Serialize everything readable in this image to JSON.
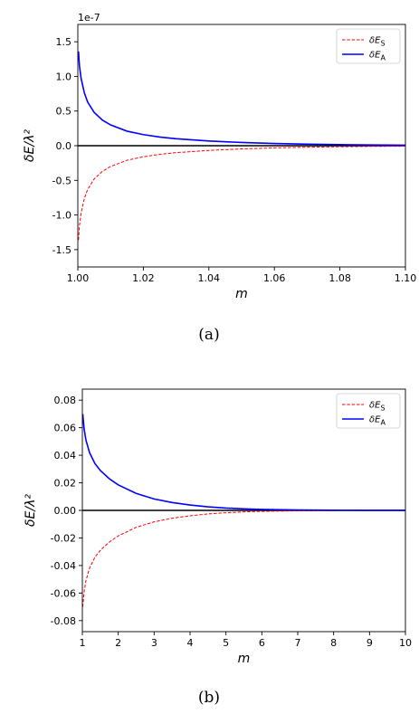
{
  "chart_data": [
    {
      "type": "line",
      "caption": "(a)",
      "xlabel": "m",
      "ylabel": "δE/λ²",
      "offset_text": "1e-7",
      "xlim": [
        1.0,
        1.1
      ],
      "ylim": [
        -1.75,
        1.75
      ],
      "xticks": [
        "1.00",
        "1.02",
        "1.04",
        "1.06",
        "1.08",
        "1.10"
      ],
      "yticks": [
        "1.5",
        "1.0",
        "0.5",
        "0.0",
        "-0.5",
        "-1.0",
        "-1.5"
      ],
      "xtick_values": [
        1.0,
        1.02,
        1.04,
        1.06,
        1.08,
        1.1
      ],
      "ytick_values": [
        1.5,
        1.0,
        0.5,
        0.0,
        -0.5,
        -1.0,
        -1.5
      ],
      "legend_position": "top-right",
      "series": [
        {
          "name": "δE_S",
          "color": "#ff0000",
          "style": "dashed",
          "x": [
            1.0002,
            1.0005,
            1.001,
            1.002,
            1.003,
            1.005,
            1.0075,
            1.01,
            1.015,
            1.02,
            1.025,
            1.03,
            1.04,
            1.05,
            1.06,
            1.07,
            1.08,
            1.09,
            1.1
          ],
          "y": [
            -1.36,
            -1.15,
            -0.97,
            -0.76,
            -0.63,
            -0.48,
            -0.37,
            -0.3,
            -0.21,
            -0.16,
            -0.125,
            -0.1,
            -0.068,
            -0.046,
            -0.032,
            -0.022,
            -0.015,
            -0.01,
            -0.007
          ]
        },
        {
          "name": "δE_A",
          "color": "#0000ff",
          "style": "solid",
          "x": [
            1.0002,
            1.0005,
            1.001,
            1.002,
            1.003,
            1.005,
            1.0075,
            1.01,
            1.015,
            1.02,
            1.025,
            1.03,
            1.04,
            1.05,
            1.06,
            1.07,
            1.08,
            1.09,
            1.1
          ],
          "y": [
            1.36,
            1.15,
            0.97,
            0.76,
            0.63,
            0.48,
            0.37,
            0.3,
            0.21,
            0.16,
            0.125,
            0.1,
            0.068,
            0.046,
            0.032,
            0.022,
            0.015,
            0.01,
            0.007
          ]
        }
      ]
    },
    {
      "type": "line",
      "caption": "(b)",
      "xlabel": "m",
      "ylabel": "δE/λ²",
      "offset_text": "",
      "xlim": [
        1,
        10
      ],
      "ylim": [
        -0.088,
        0.088
      ],
      "xticks": [
        "1",
        "2",
        "3",
        "4",
        "5",
        "6",
        "7",
        "8",
        "9",
        "10"
      ],
      "yticks": [
        "0.08",
        "0.06",
        "0.04",
        "0.02",
        "0.00",
        "-0.02",
        "-0.04",
        "-0.06",
        "-0.08"
      ],
      "xtick_values": [
        1,
        2,
        3,
        4,
        5,
        6,
        7,
        8,
        9,
        10
      ],
      "ytick_values": [
        0.08,
        0.06,
        0.04,
        0.02,
        0.0,
        -0.02,
        -0.04,
        -0.06,
        -0.08
      ],
      "legend_position": "top-right",
      "series": [
        {
          "name": "δE_S",
          "color": "#ff0000",
          "style": "dashed",
          "x": [
            1.01,
            1.05,
            1.1,
            1.2,
            1.35,
            1.5,
            1.75,
            2.0,
            2.5,
            3.0,
            3.5,
            4.0,
            4.5,
            5.0,
            5.5,
            6.0,
            7.0,
            8.0,
            9.0,
            10.0
          ],
          "y": [
            -0.07,
            -0.059,
            -0.051,
            -0.042,
            -0.034,
            -0.029,
            -0.023,
            -0.0185,
            -0.0123,
            -0.0083,
            -0.0057,
            -0.0039,
            -0.0026,
            -0.0017,
            -0.0011,
            -0.0007,
            -0.0003,
            -0.0001,
            -4e-05,
            -2e-05
          ]
        },
        {
          "name": "δE_A",
          "color": "#0000ff",
          "style": "solid",
          "x": [
            1.01,
            1.05,
            1.1,
            1.2,
            1.35,
            1.5,
            1.75,
            2.0,
            2.5,
            3.0,
            3.5,
            4.0,
            4.5,
            5.0,
            5.5,
            6.0,
            7.0,
            8.0,
            9.0,
            10.0
          ],
          "y": [
            0.07,
            0.059,
            0.051,
            0.042,
            0.034,
            0.029,
            0.023,
            0.0185,
            0.0123,
            0.0083,
            0.0057,
            0.0039,
            0.0026,
            0.0017,
            0.0011,
            0.0007,
            0.0003,
            0.0001,
            4e-05,
            2e-05
          ]
        }
      ]
    }
  ]
}
